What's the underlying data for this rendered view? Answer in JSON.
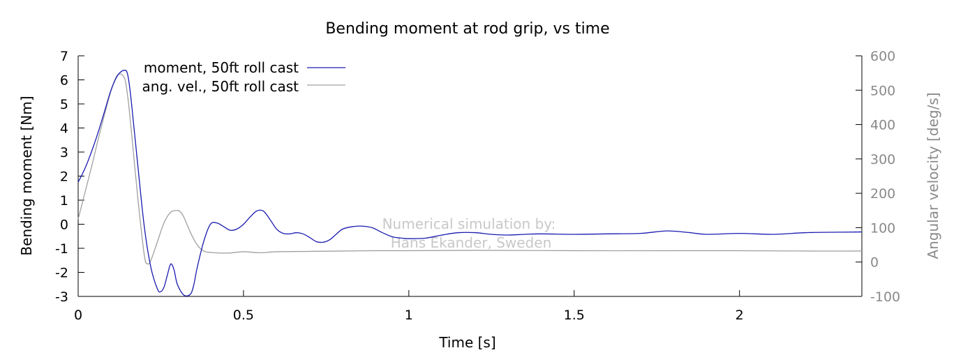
{
  "chart_data": {
    "type": "line",
    "title": "Bending moment at rod grip, vs time",
    "xlabel": "Time [s]",
    "ylabel": "Bending moment [Nm]",
    "y2label": "Angular velocity [deg/s]",
    "xlim": [
      0,
      2.37
    ],
    "ylim": [
      -3,
      7
    ],
    "y2lim": [
      -100,
      600
    ],
    "xticks": [
      "0",
      "0.5",
      "1",
      "1.5",
      "2"
    ],
    "yticks": [
      "-3",
      "-2",
      "-1",
      "0",
      "1",
      "2",
      "3",
      "4",
      "5",
      "6",
      "7"
    ],
    "y2ticks": [
      "-100",
      "0",
      "100",
      "200",
      "300",
      "400",
      "500",
      "600"
    ],
    "legend_position": "top-left",
    "annotation": [
      "Numerical simulation by:",
      "Hans Ekander, Sweden"
    ],
    "series": [
      {
        "name": "moment, 50ft roll cast",
        "axis": "left",
        "color": "#1a1ab0",
        "x": [
          0,
          0.02,
          0.04,
          0.06,
          0.08,
          0.1,
          0.12,
          0.14,
          0.15,
          0.16,
          0.18,
          0.2,
          0.22,
          0.24,
          0.25,
          0.26,
          0.27,
          0.28,
          0.29,
          0.3,
          0.32,
          0.34,
          0.35,
          0.36,
          0.38,
          0.4,
          0.42,
          0.44,
          0.46,
          0.48,
          0.5,
          0.52,
          0.54,
          0.56,
          0.58,
          0.6,
          0.62,
          0.64,
          0.66,
          0.68,
          0.7,
          0.72,
          0.74,
          0.76,
          0.78,
          0.8,
          0.83,
          0.86,
          0.89,
          0.92,
          0.95,
          0.98,
          1.0,
          1.05,
          1.1,
          1.15,
          1.2,
          1.25,
          1.3,
          1.35,
          1.4,
          1.5,
          1.6,
          1.7,
          1.78,
          1.85,
          1.9,
          2.0,
          2.1,
          2.2,
          2.3,
          2.37
        ],
        "values": [
          1.75,
          2.3,
          3.0,
          3.8,
          4.7,
          5.6,
          6.2,
          6.4,
          6.2,
          5.2,
          2.5,
          -0.1,
          -1.8,
          -2.7,
          -2.8,
          -2.6,
          -2.1,
          -1.65,
          -1.9,
          -2.5,
          -2.95,
          -2.9,
          -2.5,
          -1.8,
          -0.7,
          0.0,
          0.05,
          -0.1,
          -0.25,
          -0.2,
          0.0,
          0.3,
          0.55,
          0.55,
          0.2,
          -0.2,
          -0.38,
          -0.4,
          -0.35,
          -0.4,
          -0.55,
          -0.72,
          -0.75,
          -0.65,
          -0.42,
          -0.2,
          -0.1,
          -0.08,
          -0.15,
          -0.35,
          -0.52,
          -0.58,
          -0.6,
          -0.58,
          -0.45,
          -0.35,
          -0.35,
          -0.42,
          -0.45,
          -0.42,
          -0.4,
          -0.42,
          -0.4,
          -0.38,
          -0.28,
          -0.35,
          -0.42,
          -0.38,
          -0.42,
          -0.35,
          -0.33,
          -0.32
        ]
      },
      {
        "name": "ang. vel., 50ft roll cast",
        "axis": "right",
        "color": "#a0a0a0",
        "x": [
          0,
          0.02,
          0.04,
          0.06,
          0.08,
          0.1,
          0.12,
          0.14,
          0.15,
          0.16,
          0.18,
          0.2,
          0.21,
          0.22,
          0.24,
          0.26,
          0.28,
          0.3,
          0.31,
          0.32,
          0.34,
          0.36,
          0.38,
          0.4,
          0.45,
          0.5,
          0.55,
          0.6,
          0.7,
          0.8,
          0.9,
          1.0,
          1.2,
          1.5,
          1.8,
          2.0,
          2.2,
          2.37
        ],
        "values": [
          125,
          200,
          275,
          355,
          430,
          500,
          545,
          535,
          480,
          390,
          190,
          20,
          -5,
          5,
          60,
          115,
          145,
          150,
          145,
          130,
          85,
          50,
          32,
          28,
          26,
          30,
          27,
          30,
          31,
          32,
          33,
          33,
          34,
          33,
          33,
          33,
          32,
          32
        ]
      }
    ]
  }
}
